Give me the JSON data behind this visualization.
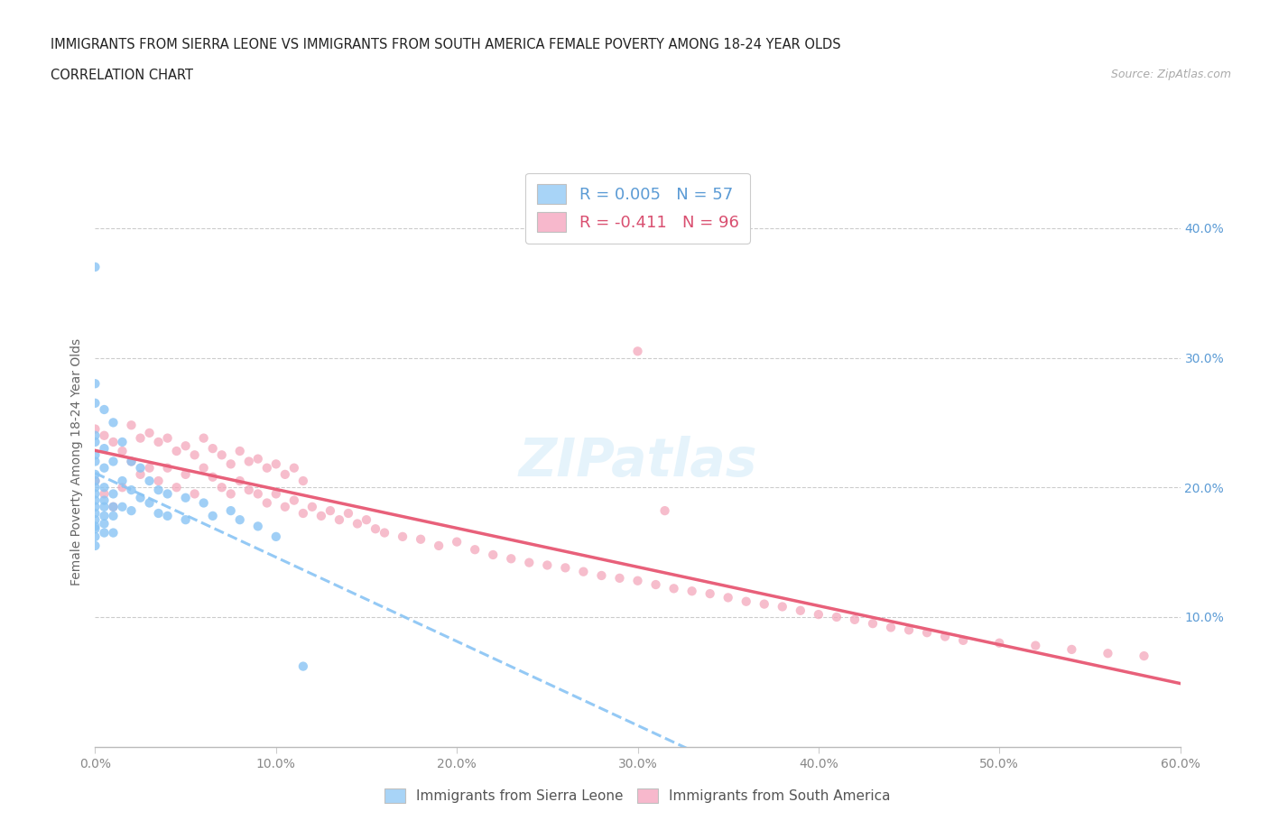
{
  "title_line1": "IMMIGRANTS FROM SIERRA LEONE VS IMMIGRANTS FROM SOUTH AMERICA FEMALE POVERTY AMONG 18-24 YEAR OLDS",
  "title_line2": "CORRELATION CHART",
  "source": "Source: ZipAtlas.com",
  "ylabel": "Female Poverty Among 18-24 Year Olds",
  "xlim": [
    0.0,
    0.6
  ],
  "ylim": [
    0.0,
    0.44
  ],
  "xtick_labels": [
    "0.0%",
    "10.0%",
    "20.0%",
    "30.0%",
    "40.0%",
    "50.0%",
    "60.0%"
  ],
  "xtick_vals": [
    0.0,
    0.1,
    0.2,
    0.3,
    0.4,
    0.5,
    0.6
  ],
  "ytick_labels": [
    "10.0%",
    "20.0%",
    "30.0%",
    "40.0%"
  ],
  "ytick_vals": [
    0.1,
    0.2,
    0.3,
    0.4
  ],
  "color_sierra": "#89c4f4",
  "color_south": "#f4a7bb",
  "trendline_sierra_color": "#89c4f4",
  "trendline_south_color": "#e8607a",
  "legend_sierra_label": "R = 0.005   N = 57",
  "legend_south_label": "R = -0.411   N = 96",
  "legend_sierra_r_color": "#5b9bd5",
  "legend_south_r_color": "#d94f70",
  "legend_sierra_patch": "#a8d4f7",
  "legend_south_patch": "#f7b8cc",
  "watermark": "ZIPatlas",
  "sierra_x": [
    0.0,
    0.0,
    0.0,
    0.0,
    0.0,
    0.0,
    0.0,
    0.0,
    0.0,
    0.0,
    0.0,
    0.0,
    0.0,
    0.0,
    0.0,
    0.0,
    0.0,
    0.0,
    0.0,
    0.005,
    0.005,
    0.005,
    0.005,
    0.005,
    0.005,
    0.005,
    0.005,
    0.005,
    0.01,
    0.01,
    0.01,
    0.01,
    0.01,
    0.01,
    0.015,
    0.015,
    0.015,
    0.02,
    0.02,
    0.02,
    0.025,
    0.025,
    0.03,
    0.03,
    0.035,
    0.035,
    0.04,
    0.04,
    0.05,
    0.05,
    0.06,
    0.065,
    0.075,
    0.08,
    0.09,
    0.1,
    0.115
  ],
  "sierra_y": [
    0.37,
    0.28,
    0.265,
    0.24,
    0.235,
    0.225,
    0.22,
    0.21,
    0.205,
    0.2,
    0.195,
    0.19,
    0.185,
    0.18,
    0.175,
    0.17,
    0.168,
    0.162,
    0.155,
    0.26,
    0.23,
    0.215,
    0.2,
    0.19,
    0.185,
    0.178,
    0.172,
    0.165,
    0.25,
    0.22,
    0.195,
    0.185,
    0.178,
    0.165,
    0.235,
    0.205,
    0.185,
    0.22,
    0.198,
    0.182,
    0.215,
    0.192,
    0.205,
    0.188,
    0.198,
    0.18,
    0.195,
    0.178,
    0.192,
    0.175,
    0.188,
    0.178,
    0.182,
    0.175,
    0.17,
    0.162,
    0.062
  ],
  "south_x": [
    0.0,
    0.005,
    0.01,
    0.015,
    0.02,
    0.025,
    0.03,
    0.035,
    0.04,
    0.045,
    0.05,
    0.055,
    0.06,
    0.065,
    0.07,
    0.075,
    0.08,
    0.085,
    0.09,
    0.095,
    0.1,
    0.105,
    0.11,
    0.115,
    0.12,
    0.125,
    0.13,
    0.135,
    0.14,
    0.145,
    0.0,
    0.005,
    0.01,
    0.015,
    0.02,
    0.025,
    0.03,
    0.035,
    0.04,
    0.045,
    0.05,
    0.055,
    0.06,
    0.065,
    0.07,
    0.075,
    0.08,
    0.085,
    0.09,
    0.095,
    0.1,
    0.105,
    0.11,
    0.115,
    0.15,
    0.155,
    0.16,
    0.17,
    0.18,
    0.19,
    0.2,
    0.21,
    0.22,
    0.23,
    0.24,
    0.25,
    0.26,
    0.27,
    0.28,
    0.29,
    0.3,
    0.31,
    0.32,
    0.33,
    0.34,
    0.35,
    0.36,
    0.37,
    0.38,
    0.39,
    0.4,
    0.41,
    0.42,
    0.43,
    0.44,
    0.45,
    0.46,
    0.47,
    0.48,
    0.5,
    0.52,
    0.54,
    0.56,
    0.58,
    0.3,
    0.315
  ],
  "south_y": [
    0.205,
    0.195,
    0.185,
    0.2,
    0.22,
    0.21,
    0.215,
    0.205,
    0.215,
    0.2,
    0.21,
    0.195,
    0.215,
    0.208,
    0.2,
    0.195,
    0.205,
    0.198,
    0.195,
    0.188,
    0.195,
    0.185,
    0.19,
    0.18,
    0.185,
    0.178,
    0.182,
    0.175,
    0.18,
    0.172,
    0.245,
    0.24,
    0.235,
    0.228,
    0.248,
    0.238,
    0.242,
    0.235,
    0.238,
    0.228,
    0.232,
    0.225,
    0.238,
    0.23,
    0.225,
    0.218,
    0.228,
    0.22,
    0.222,
    0.215,
    0.218,
    0.21,
    0.215,
    0.205,
    0.175,
    0.168,
    0.165,
    0.162,
    0.16,
    0.155,
    0.158,
    0.152,
    0.148,
    0.145,
    0.142,
    0.14,
    0.138,
    0.135,
    0.132,
    0.13,
    0.128,
    0.125,
    0.122,
    0.12,
    0.118,
    0.115,
    0.112,
    0.11,
    0.108,
    0.105,
    0.102,
    0.1,
    0.098,
    0.095,
    0.092,
    0.09,
    0.088,
    0.085,
    0.082,
    0.08,
    0.078,
    0.075,
    0.072,
    0.07,
    0.305,
    0.182
  ]
}
